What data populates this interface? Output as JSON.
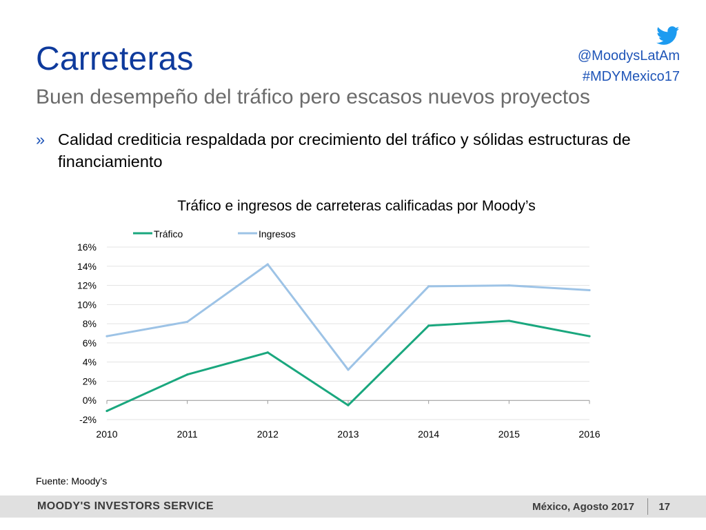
{
  "slide": {
    "title": "Carreteras",
    "subtitle": "Buen desempeño del tráfico pero escasos nuevos proyectos",
    "bullet_mark": "»",
    "bullet_text": "Calidad crediticia respaldada por crecimiento del tráfico y sólidas estructuras de financiamiento",
    "source": "Fuente: Moody’s"
  },
  "social": {
    "icon": "twitter-bird-icon",
    "handle": "@MoodysLatAm",
    "hashtag": "#MDYMexico17",
    "color": "#1f55b8"
  },
  "footer": {
    "brand": "MOODY'S INVESTORS SERVICE",
    "place_date": "México, Agosto 2017",
    "page": "17"
  },
  "chart_data": {
    "type": "line",
    "title": "Tráfico e ingresos de carreteras calificadas por Moody’s",
    "x": [
      "2010",
      "2011",
      "2012",
      "2013",
      "2014",
      "2015",
      "2016"
    ],
    "series": [
      {
        "name": "Tráfico",
        "color": "#1aa77e",
        "values": [
          -1.1,
          2.7,
          5.0,
          -0.5,
          7.8,
          8.3,
          6.7
        ]
      },
      {
        "name": "Ingresos",
        "color": "#9dc3e6",
        "values": [
          6.7,
          8.2,
          14.2,
          3.2,
          11.9,
          12.0,
          11.5
        ]
      }
    ],
    "ylim": [
      -2,
      16
    ],
    "yticks": [
      "-2%",
      "0%",
      "2%",
      "4%",
      "6%",
      "8%",
      "10%",
      "12%",
      "14%",
      "16%"
    ],
    "grid": true,
    "legend_position": "top-left"
  }
}
